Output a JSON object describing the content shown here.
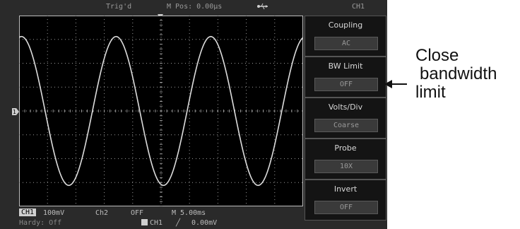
{
  "top_bar": {
    "trig_status": "Trig'd",
    "m_pos": "M Pos: 0.00µs",
    "usb_icon": "usb-icon",
    "channel": "CH1"
  },
  "menu": [
    {
      "label": "Coupling",
      "value": "AC"
    },
    {
      "label": "BW Limit",
      "value": "OFF"
    },
    {
      "label": "Volts/Div",
      "value": "Coarse"
    },
    {
      "label": "Probe",
      "value": "10X"
    },
    {
      "label": "Invert",
      "value": "OFF"
    }
  ],
  "status": {
    "ch1_tag": "CH1",
    "ch1_scale": "100mV",
    "ch2_label": "Ch2",
    "ch2_state": "OFF",
    "timebase": "M 5.00ms",
    "ready_text": "Hardy: Off",
    "trig_source": "CH1",
    "trig_level": "0.00mV"
  },
  "annotation": {
    "line1": "Close",
    "line2": "bandwidth",
    "line3": "limit"
  },
  "waveform": {
    "cycles": 3,
    "amplitude_fraction": 0.78,
    "color": "#dcdcdc"
  }
}
